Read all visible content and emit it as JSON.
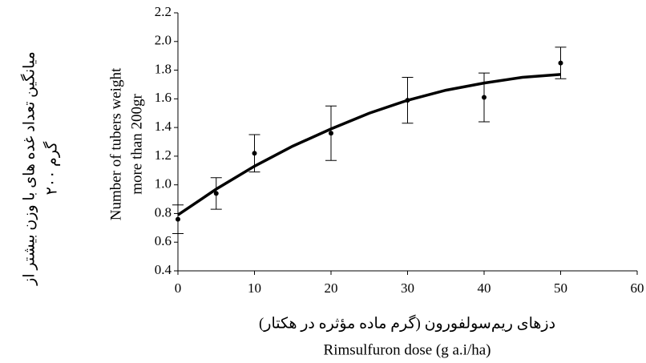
{
  "chart_data": {
    "type": "scatter",
    "x_label": [
      "دزهای ریم‌سولفورون (گرم ماده مؤثره در هکتار)",
      "Rimsulfuron dose (g a.i/ha)"
    ],
    "y_label": [
      "میانگین تعداد غده های با وزن بیشتر از",
      "۲۰۰ گرم",
      "Number of tubers weight",
      "more than 200gr"
    ],
    "series": [
      {
        "x": [
          0,
          5,
          10,
          20,
          30,
          40,
          50
        ],
        "values": [
          0.76,
          0.94,
          1.22,
          1.36,
          1.59,
          1.61,
          1.85
        ],
        "errors": [
          0.1,
          0.11,
          0.13,
          0.19,
          0.16,
          0.17,
          0.11
        ],
        "color": "#000000"
      }
    ],
    "fit": {
      "x": [
        0,
        5,
        10,
        15,
        20,
        25,
        30,
        35,
        40,
        45,
        50
      ],
      "values": [
        0.79,
        0.97,
        1.13,
        1.27,
        1.39,
        1.5,
        1.59,
        1.66,
        1.71,
        1.75,
        1.77
      ],
      "color": "#000000"
    },
    "xlim": [
      0,
      60
    ],
    "xticks": [
      0,
      10,
      20,
      30,
      40,
      50,
      60
    ],
    "ylim": [
      0.4,
      2.2
    ],
    "yticks": [
      0.4,
      0.6,
      0.8,
      {
        "value": 1,
        "label": "1.0"
      },
      1.2,
      1.4,
      1.6,
      1.8,
      {
        "value": 2,
        "label": "2.0"
      },
      2.2
    ],
    "grid": false
  }
}
